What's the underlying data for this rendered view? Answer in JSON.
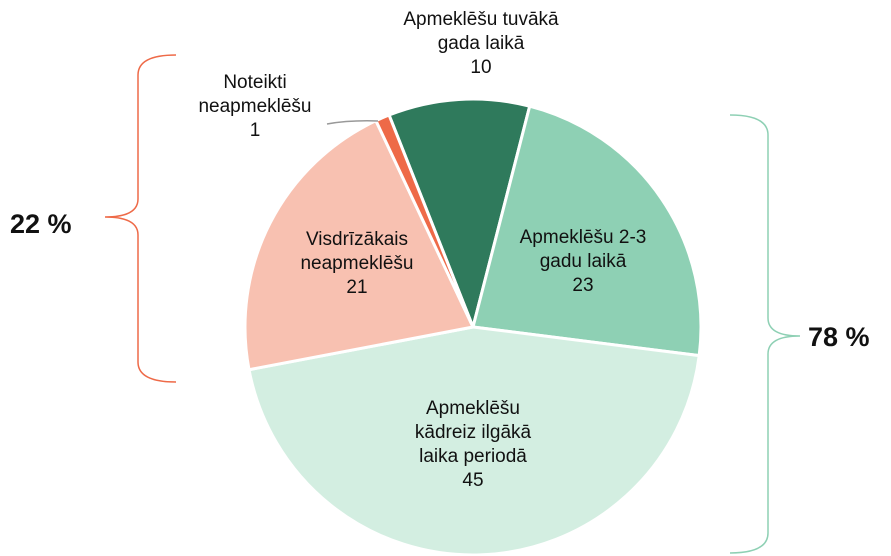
{
  "chart_data": {
    "type": "pie",
    "categories": [
      "Apmeklēšu tuvākā\ngada laikā",
      "Apmeklēšu 2-3\ngadu laikā",
      "Apmeklēšu\nkādreiz ilgākā\nlaika periodā",
      "Visdrīzākais\nneapmeklēšu",
      "Noteikti\nneapmeklēšu"
    ],
    "values": [
      10,
      23,
      45,
      21,
      1
    ],
    "colors": [
      "#2f7a5c",
      "#8ed0b4",
      "#d3eee1",
      "#f8c1b1",
      "#ee6a48"
    ],
    "annotations": [
      {
        "text": "22 %",
        "color": "#ee6a48"
      },
      {
        "text": "78 %",
        "color": "#8ed0b4"
      }
    ]
  }
}
